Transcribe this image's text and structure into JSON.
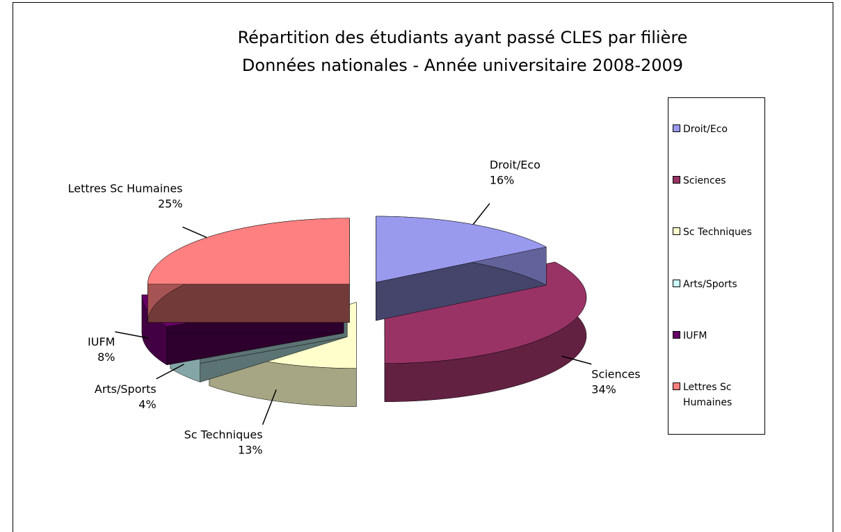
{
  "chart_data": {
    "type": "pie",
    "title": "Répartition des étudiants ayant passé CLES par filière",
    "subtitle": "Données nationales - Année universitaire 2008-2009",
    "categories": [
      "Droit/Eco",
      "Sciences",
      "Sc Techniques",
      "Arts/Sports",
      "IUFM",
      "Lettres Sc Humaines"
    ],
    "values": [
      16,
      34,
      13,
      4,
      8,
      25
    ],
    "value_labels": [
      "16%",
      "34%",
      "13%",
      "4%",
      "8%",
      "25%"
    ],
    "colors": [
      "#9999ee",
      "#993366",
      "#ffffcc",
      "#ccffff",
      "#660066",
      "#ff8080"
    ],
    "legend": "right"
  }
}
